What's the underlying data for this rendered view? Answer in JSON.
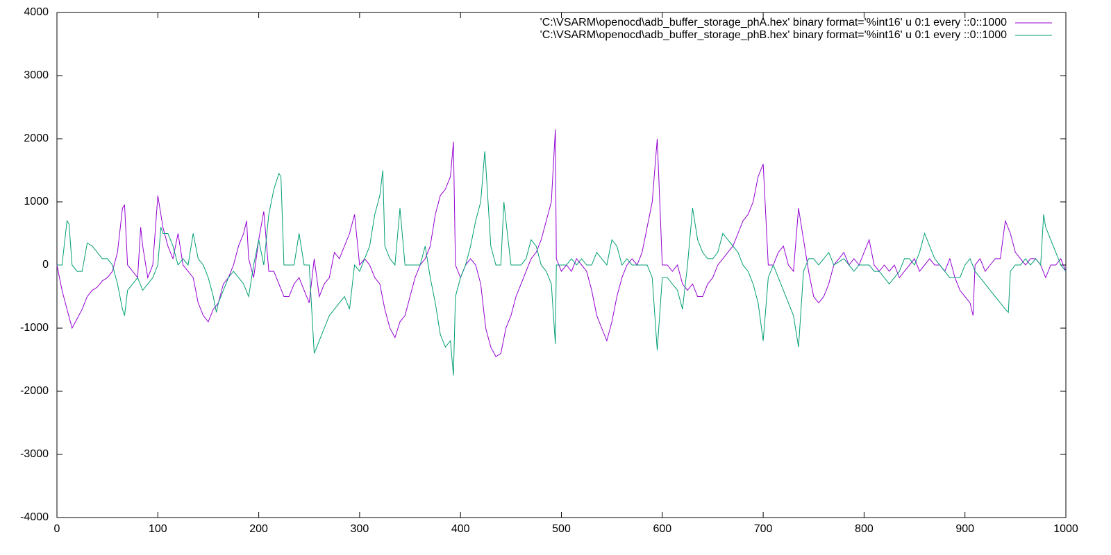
{
  "chart_data": {
    "type": "line",
    "xlim": [
      0,
      1000
    ],
    "xticks": [
      0,
      100,
      200,
      300,
      400,
      500,
      600,
      700,
      800,
      900,
      1000
    ],
    "ylim": [
      -4000,
      4000
    ],
    "yticks": [
      -4000,
      -3000,
      -2000,
      -1000,
      0,
      1000,
      2000,
      3000,
      4000
    ],
    "legend": "top-right",
    "series": [
      {
        "name": "'C:\\VSARM\\openocd\\adb_buffer_storage_phA.hex' binary format='%int16' u 0:1 every ::0::1000",
        "color": "#9400d3",
        "x": [
          0,
          5,
          10,
          15,
          20,
          25,
          30,
          35,
          40,
          45,
          50,
          55,
          60,
          65,
          67,
          70,
          75,
          80,
          83,
          85,
          90,
          95,
          100,
          105,
          110,
          115,
          120,
          125,
          130,
          135,
          140,
          145,
          150,
          155,
          160,
          165,
          170,
          175,
          180,
          185,
          188,
          190,
          195,
          200,
          205,
          210,
          215,
          220,
          225,
          230,
          235,
          240,
          245,
          250,
          255,
          260,
          265,
          270,
          275,
          280,
          285,
          290,
          295,
          300,
          305,
          310,
          315,
          320,
          325,
          330,
          335,
          340,
          345,
          350,
          355,
          360,
          365,
          370,
          375,
          380,
          385,
          390,
          393,
          395,
          400,
          405,
          410,
          415,
          420,
          425,
          430,
          435,
          440,
          445,
          450,
          455,
          460,
          465,
          470,
          475,
          480,
          485,
          490,
          494,
          495,
          500,
          505,
          510,
          515,
          520,
          525,
          530,
          535,
          540,
          545,
          550,
          555,
          560,
          565,
          570,
          575,
          580,
          585,
          590,
          595,
          600,
          605,
          610,
          615,
          620,
          625,
          630,
          635,
          640,
          645,
          650,
          655,
          660,
          665,
          670,
          675,
          680,
          685,
          690,
          695,
          700,
          705,
          710,
          715,
          720,
          725,
          730,
          735,
          740,
          745,
          750,
          755,
          760,
          765,
          770,
          775,
          780,
          785,
          790,
          795,
          800,
          805,
          810,
          815,
          820,
          825,
          830,
          835,
          840,
          845,
          850,
          855,
          860,
          865,
          870,
          875,
          880,
          885,
          890,
          895,
          900,
          905,
          908,
          910,
          915,
          920,
          925,
          930,
          935,
          940,
          945,
          950,
          955,
          960,
          965,
          970,
          975,
          980,
          985,
          990,
          995,
          1000
        ],
        "values": [
          0,
          -400,
          -700,
          -1000,
          -850,
          -700,
          -500,
          -400,
          -350,
          -250,
          -200,
          -100,
          200,
          900,
          950,
          0,
          -100,
          -200,
          600,
          300,
          -200,
          0,
          1100,
          600,
          300,
          100,
          500,
          0,
          -100,
          -200,
          -600,
          -800,
          -900,
          -700,
          -600,
          -300,
          -200,
          0,
          300,
          500,
          700,
          100,
          -200,
          400,
          850,
          -100,
          -100,
          -300,
          -500,
          -500,
          -300,
          -200,
          -400,
          -600,
          100,
          -500,
          -300,
          -200,
          200,
          100,
          300,
          500,
          800,
          0,
          100,
          0,
          -200,
          -300,
          -700,
          -1000,
          -1150,
          -900,
          -800,
          -500,
          -200,
          0,
          100,
          300,
          800,
          1100,
          1200,
          1400,
          1950,
          0,
          -200,
          0,
          100,
          0,
          -300,
          -1000,
          -1300,
          -1450,
          -1400,
          -1000,
          -800,
          -500,
          -300,
          -100,
          100,
          200,
          400,
          700,
          1000,
          2150,
          100,
          -100,
          0,
          -100,
          100,
          0,
          -100,
          -400,
          -800,
          -1000,
          -1200,
          -900,
          -500,
          -200,
          0,
          100,
          0,
          200,
          600,
          1000,
          2000,
          0,
          0,
          -100,
          0,
          -300,
          -400,
          -300,
          -500,
          -500,
          -300,
          -200,
          0,
          100,
          200,
          300,
          500,
          700,
          800,
          1000,
          1400,
          1600,
          0,
          0,
          200,
          300,
          0,
          -100,
          900,
          400,
          -100,
          -500,
          -600,
          -500,
          -300,
          0,
          100,
          200,
          0,
          100,
          0,
          200,
          400,
          0,
          -100,
          0,
          -100,
          0,
          -200,
          -100,
          0,
          100,
          -100,
          0,
          100,
          0,
          0,
          -100,
          100,
          -200,
          -400,
          -500,
          -600,
          -800,
          0,
          100,
          -100,
          0,
          100,
          100,
          700,
          500,
          200,
          100,
          0,
          100,
          100,
          0,
          -200,
          0,
          0,
          100,
          -100
        ]
      },
      {
        "name": "'C:\\VSARM\\openocd\\adb_buffer_storage_phB.hex' binary format='%int16' u 0:1 every ::0::1000",
        "color": "#009e73",
        "x": [
          0,
          5,
          10,
          12,
          15,
          20,
          25,
          30,
          35,
          40,
          45,
          50,
          55,
          60,
          65,
          67,
          70,
          75,
          80,
          85,
          90,
          95,
          100,
          103,
          105,
          110,
          115,
          120,
          125,
          130,
          135,
          140,
          145,
          150,
          155,
          158,
          160,
          165,
          170,
          175,
          180,
          185,
          190,
          195,
          200,
          205,
          210,
          215,
          220,
          222,
          225,
          230,
          235,
          240,
          245,
          250,
          255,
          260,
          265,
          270,
          275,
          280,
          285,
          290,
          295,
          300,
          305,
          310,
          315,
          320,
          323,
          325,
          330,
          335,
          340,
          345,
          350,
          355,
          360,
          365,
          370,
          375,
          380,
          385,
          390,
          393,
          395,
          400,
          405,
          410,
          415,
          420,
          424,
          425,
          430,
          435,
          440,
          443,
          445,
          450,
          455,
          460,
          465,
          470,
          475,
          480,
          485,
          490,
          494,
          495,
          500,
          505,
          510,
          515,
          520,
          525,
          530,
          535,
          540,
          545,
          550,
          555,
          560,
          565,
          570,
          575,
          580,
          585,
          590,
          595,
          600,
          605,
          610,
          615,
          620,
          625,
          630,
          635,
          640,
          645,
          650,
          655,
          660,
          665,
          670,
          675,
          680,
          685,
          690,
          695,
          700,
          705,
          710,
          715,
          720,
          725,
          730,
          735,
          740,
          745,
          750,
          755,
          760,
          765,
          770,
          780,
          785,
          790,
          795,
          800,
          805,
          810,
          815,
          820,
          825,
          830,
          835,
          840,
          845,
          850,
          855,
          860,
          865,
          870,
          875,
          880,
          885,
          890,
          895,
          900,
          905,
          910,
          915,
          920,
          925,
          930,
          935,
          940,
          943,
          945,
          950,
          955,
          960,
          965,
          970,
          975,
          978,
          980,
          985,
          990,
          995,
          1000
        ],
        "values": [
          0,
          0,
          700,
          650,
          0,
          -100,
          -100,
          350,
          300,
          200,
          100,
          100,
          0,
          -300,
          -700,
          -800,
          -400,
          -300,
          -200,
          -400,
          -300,
          -200,
          0,
          600,
          500,
          500,
          300,
          0,
          100,
          0,
          500,
          100,
          0,
          -200,
          -500,
          -750,
          -600,
          -400,
          -200,
          -100,
          -200,
          -300,
          -500,
          0,
          400,
          0,
          800,
          1200,
          1450,
          1400,
          0,
          0,
          0,
          500,
          0,
          0,
          -1400,
          -1200,
          -1000,
          -800,
          -700,
          -600,
          -500,
          -700,
          0,
          -100,
          100,
          300,
          800,
          1100,
          1500,
          300,
          100,
          0,
          900,
          0,
          0,
          0,
          0,
          300,
          -200,
          -600,
          -1100,
          -1300,
          -1200,
          -1750,
          -500,
          -200,
          0,
          300,
          700,
          1000,
          1800,
          1600,
          300,
          0,
          0,
          1000,
          700,
          0,
          0,
          0,
          100,
          400,
          300,
          0,
          -100,
          -300,
          -1250,
          0,
          0,
          0,
          100,
          0,
          100,
          0,
          0,
          200,
          100,
          0,
          400,
          300,
          0,
          100,
          0,
          0,
          0,
          0,
          -200,
          -1350,
          -200,
          -200,
          -300,
          -400,
          -700,
          0,
          900,
          400,
          200,
          100,
          100,
          200,
          500,
          400,
          300,
          200,
          0,
          -100,
          -300,
          -600,
          -1200,
          -200,
          0,
          -200,
          -400,
          -600,
          -800,
          -1300,
          -100,
          100,
          100,
          0,
          100,
          200,
          0,
          100,
          0,
          -100,
          0,
          0,
          0,
          -100,
          -100,
          -200,
          -300,
          -200,
          -100,
          100,
          100,
          0,
          200,
          500,
          300,
          100,
          0,
          -100,
          -200,
          -200,
          -200,
          0,
          100,
          -100,
          -200,
          -300,
          -400,
          -500,
          -600,
          -700,
          -750,
          -100,
          0,
          0,
          100,
          0,
          100,
          0,
          800,
          600,
          400,
          200,
          0,
          -100
        ]
      }
    ]
  }
}
